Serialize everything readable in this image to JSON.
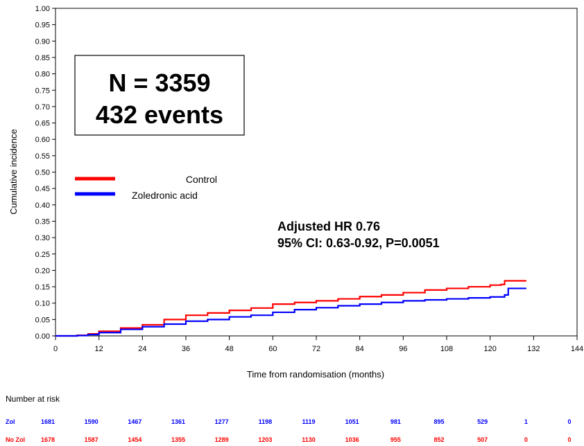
{
  "chart_data": {
    "type": "line",
    "xlabel": "Time from randomisation (months)",
    "ylabel": "Cumulative incidence",
    "xlim": [
      0,
      144
    ],
    "ylim": [
      0,
      1
    ],
    "x_ticks": [
      "0",
      "12",
      "24",
      "36",
      "48",
      "60",
      "72",
      "84",
      "96",
      "108",
      "120",
      "132",
      "144"
    ],
    "y_ticks": [
      "0.00",
      "0.05",
      "0.10",
      "0.15",
      "0.20",
      "0.25",
      "0.30",
      "0.35",
      "0.40",
      "0.45",
      "0.50",
      "0.55",
      "0.60",
      "0.65",
      "0.70",
      "0.75",
      "0.80",
      "0.85",
      "0.90",
      "0.95",
      "1.00"
    ],
    "grid": false,
    "legend_position": "middle-left",
    "series": [
      {
        "name": "Control",
        "color": "#ff0000",
        "points": [
          [
            0,
            0
          ],
          [
            6,
            0.002
          ],
          [
            9,
            0.006
          ],
          [
            12,
            0.014
          ],
          [
            18,
            0.024
          ],
          [
            24,
            0.034
          ],
          [
            30,
            0.05
          ],
          [
            36,
            0.063
          ],
          [
            42,
            0.07
          ],
          [
            48,
            0.078
          ],
          [
            54,
            0.085
          ],
          [
            60,
            0.097
          ],
          [
            66,
            0.102
          ],
          [
            72,
            0.107
          ],
          [
            78,
            0.113
          ],
          [
            84,
            0.12
          ],
          [
            90,
            0.125
          ],
          [
            96,
            0.132
          ],
          [
            102,
            0.14
          ],
          [
            108,
            0.145
          ],
          [
            114,
            0.15
          ],
          [
            120,
            0.155
          ],
          [
            123,
            0.157
          ],
          [
            124,
            0.168
          ],
          [
            130,
            0.168
          ]
        ]
      },
      {
        "name": "Zoledronic acid",
        "color": "#0000ff",
        "points": [
          [
            0,
            0
          ],
          [
            6,
            0.001
          ],
          [
            9,
            0.004
          ],
          [
            12,
            0.01
          ],
          [
            18,
            0.02
          ],
          [
            24,
            0.028
          ],
          [
            30,
            0.036
          ],
          [
            36,
            0.045
          ],
          [
            42,
            0.05
          ],
          [
            48,
            0.058
          ],
          [
            54,
            0.063
          ],
          [
            60,
            0.072
          ],
          [
            66,
            0.08
          ],
          [
            72,
            0.086
          ],
          [
            78,
            0.092
          ],
          [
            84,
            0.097
          ],
          [
            90,
            0.102
          ],
          [
            96,
            0.107
          ],
          [
            102,
            0.11
          ],
          [
            108,
            0.113
          ],
          [
            114,
            0.116
          ],
          [
            120,
            0.119
          ],
          [
            124,
            0.125
          ],
          [
            125,
            0.145
          ],
          [
            130,
            0.145
          ]
        ]
      }
    ],
    "annotations": {
      "box_line1": "N = 3359",
      "box_line2": "432 events",
      "hr_line1": "Adjusted HR 0.76",
      "hr_line2": "95% CI: 0.63-0.92, P=0.0051"
    },
    "risk_table": {
      "title": "Number at risk",
      "rows": [
        {
          "label": "Zol",
          "color": "#0000ff",
          "values": [
            "1681",
            "1590",
            "1467",
            "1361",
            "1277",
            "1198",
            "1119",
            "1051",
            "981",
            "895",
            "529",
            "1",
            "0"
          ]
        },
        {
          "label": "No Zol",
          "color": "#ff0000",
          "values": [
            "1678",
            "1587",
            "1454",
            "1355",
            "1289",
            "1203",
            "1130",
            "1036",
            "955",
            "852",
            "507",
            "0",
            "0"
          ]
        }
      ]
    }
  }
}
